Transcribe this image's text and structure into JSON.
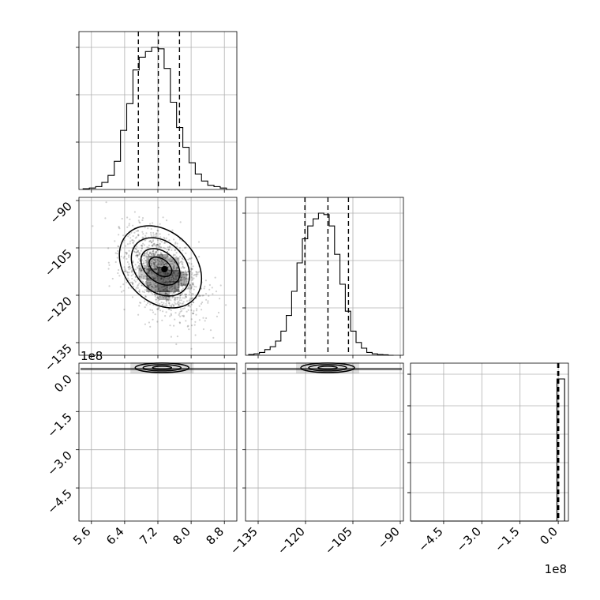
{
  "chart_data": {
    "type": "corner",
    "grid": true,
    "parameters": [
      "",
      "",
      ""
    ],
    "histograms": [
      {
        "panel": "x",
        "bin_edges": [
          5.4,
          5.55,
          5.7,
          5.85,
          6.0,
          6.15,
          6.3,
          6.45,
          6.6,
          6.75,
          6.9,
          7.05,
          7.2,
          7.35,
          7.5,
          7.65,
          7.8,
          7.95,
          8.1,
          8.25,
          8.4,
          8.55,
          8.7,
          8.85,
          9.0
        ],
        "heights": [
          0.5,
          1,
          2,
          5,
          10,
          20,
          42,
          61,
          85,
          94,
          98,
          101,
          100,
          86,
          62,
          44,
          30,
          19,
          11,
          6,
          3,
          2,
          1,
          0
        ],
        "quantiles": [
          6.73,
          7.21,
          7.72
        ],
        "xlim": [
          5.3,
          9.1
        ]
      },
      {
        "panel": "y",
        "bin_edges": [
          -138,
          -136.3,
          -134.6,
          -132.9,
          -131.2,
          -129.5,
          -127.8,
          -126.1,
          -124.4,
          -122.7,
          -121.0,
          -119.3,
          -117.6,
          -115.9,
          -114.2,
          -112.5,
          -110.8,
          -109.1,
          -107.4,
          -105.7,
          -104.0,
          -102.3,
          -100.6,
          -98.9,
          -97.2,
          -95.5,
          -93.8,
          -92.1
        ],
        "heights": [
          0.5,
          1,
          2,
          4,
          6,
          10,
          17,
          28,
          45,
          65,
          82,
          91,
          96,
          100,
          99,
          91,
          71,
          50,
          31,
          17,
          9,
          5,
          2,
          1,
          0.5,
          0.3,
          0
        ],
        "quantiles": [
          -120.2,
          -112.9,
          -106.4
        ],
        "xlim": [
          -139,
          -89
        ]
      },
      {
        "panel": "z",
        "bin_edges": [
          -5.8,
          -0.05,
          0.05,
          0.25
        ],
        "heights": [
          0,
          100,
          100
        ],
        "quantiles": [
          -0.02,
          0.0,
          0.02
        ],
        "xlim": [
          -5.8,
          0.4
        ]
      }
    ],
    "pairs": [
      {
        "panel": "y-vs-x",
        "xlim": [
          5.3,
          9.1
        ],
        "ylim": [
          -139,
          -89
        ],
        "center": [
          7.3,
          -113
        ],
        "correlation": -0.45,
        "contour_levels": [
          "1-sigma",
          "1.5-sigma",
          "2-sigma",
          "2.5-sigma"
        ]
      },
      {
        "panel": "z-vs-x",
        "xlim": [
          5.3,
          9.1
        ],
        "ylim": [
          -5.8,
          0.4
        ],
        "center": [
          7.3,
          0.1
        ]
      },
      {
        "panel": "z-vs-y",
        "xlim": [
          -139,
          -89
        ],
        "ylim": [
          -5.8,
          0.4
        ],
        "center": [
          -113,
          0.1
        ]
      }
    ],
    "ticks": {
      "x": [
        "5.6",
        "6.4",
        "7.2",
        "8.0",
        "8.8"
      ],
      "y": [
        "−135",
        "−120",
        "−105",
        "−90"
      ],
      "z": [
        "−4.5",
        "−3.0",
        "−1.5",
        "0.0"
      ]
    },
    "offset_labels": {
      "z_axis": "1e8",
      "z_xaxis": "1e8"
    }
  }
}
